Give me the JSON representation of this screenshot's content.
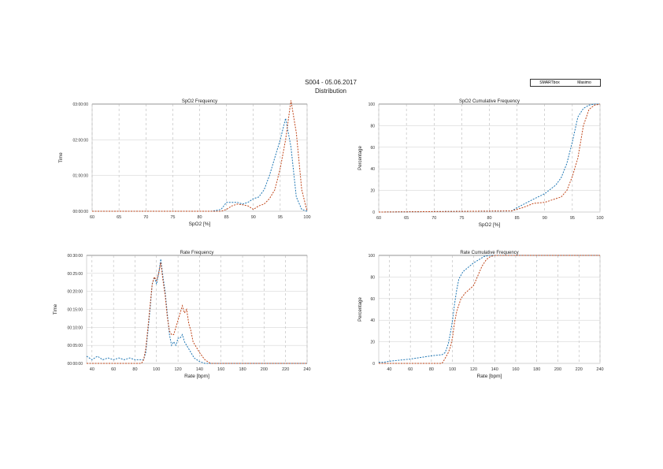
{
  "header": {
    "title": "S004 - 05.06.2017",
    "subtitle": "Distribution"
  },
  "legend": [
    "SMARTbox",
    "Masimo"
  ],
  "colors": {
    "SMARTbox": "#1f77b4",
    "Masimo": "#c0461a"
  },
  "chart_data": [
    {
      "type": "line",
      "title": "SpO2 Frequency",
      "xlabel": "SpO2 [%]",
      "ylabel": "Time",
      "xlim": [
        60,
        100
      ],
      "ylim": [
        0,
        3
      ],
      "xticks": [
        60,
        65,
        70,
        75,
        80,
        85,
        90,
        95,
        100
      ],
      "yticks": [
        0,
        1,
        2,
        3
      ],
      "yticklabels": [
        "00:00:00",
        "01:00:00",
        "02:00:00",
        "03:00:00"
      ],
      "series": [
        {
          "name": "SMARTbox",
          "x": [
            60,
            82,
            83,
            84,
            85,
            86,
            87,
            88,
            89,
            90,
            91,
            92,
            93,
            94,
            95,
            96,
            97,
            98,
            99,
            100
          ],
          "values": [
            0,
            0,
            0.02,
            0.05,
            0.25,
            0.25,
            0.25,
            0.2,
            0.25,
            0.35,
            0.4,
            0.6,
            1.0,
            1.5,
            2.0,
            2.6,
            1.8,
            0.4,
            0.05,
            0
          ]
        },
        {
          "name": "Masimo",
          "x": [
            60,
            84,
            85,
            86,
            87,
            88,
            89,
            90,
            91,
            92,
            93,
            94,
            95,
            96,
            97,
            98,
            99,
            100
          ],
          "values": [
            0,
            0,
            0.05,
            0.15,
            0.2,
            0.18,
            0.15,
            0.05,
            0.15,
            0.2,
            0.35,
            0.6,
            1.2,
            2.0,
            3.1,
            2.2,
            0.6,
            0
          ]
        }
      ]
    },
    {
      "type": "line",
      "title": "SpO2 Cumulative Frequency",
      "xlabel": "SpO2 [%]",
      "ylabel": "Percentage",
      "xlim": [
        60,
        100
      ],
      "ylim": [
        0,
        100
      ],
      "xticks": [
        60,
        65,
        70,
        75,
        80,
        85,
        90,
        95,
        100
      ],
      "yticks": [
        0,
        20,
        40,
        60,
        80,
        100
      ],
      "yticklabels": [
        "0",
        "20",
        "40",
        "60",
        "80",
        "100"
      ],
      "series": [
        {
          "name": "SMARTbox",
          "x": [
            60,
            84,
            85,
            88,
            90,
            92,
            93,
            94,
            95,
            96,
            97,
            98,
            99,
            100
          ],
          "values": [
            0,
            1,
            4,
            12,
            17,
            25,
            32,
            45,
            65,
            88,
            96,
            99,
            100,
            100
          ]
        },
        {
          "name": "Masimo",
          "x": [
            60,
            84,
            86,
            88,
            90,
            93,
            94,
            95,
            96,
            97,
            98,
            99,
            100
          ],
          "values": [
            0,
            1,
            4,
            8,
            9,
            14,
            20,
            33,
            50,
            80,
            95,
            99,
            100
          ]
        }
      ]
    },
    {
      "type": "line",
      "title": "Rate Frequency",
      "xlabel": "Rate [bpm]",
      "ylabel": "Time",
      "xlim": [
        35,
        240
      ],
      "ylim": [
        0,
        30
      ],
      "xticks": [
        40,
        60,
        80,
        100,
        120,
        140,
        160,
        180,
        200,
        220,
        240
      ],
      "yticks": [
        0,
        5,
        10,
        15,
        20,
        25,
        30
      ],
      "yticklabels": [
        "00:00:00",
        "00:05:00",
        "00:10:00",
        "00:15:00",
        "00:20:00",
        "00:25:00",
        "00:30:00"
      ],
      "series": [
        {
          "name": "SMARTbox",
          "x": [
            35,
            40,
            45,
            50,
            55,
            60,
            65,
            70,
            75,
            80,
            85,
            88,
            90,
            92,
            94,
            96,
            98,
            100,
            102,
            104,
            106,
            108,
            110,
            112,
            114,
            116,
            118,
            120,
            122,
            124,
            126,
            128,
            130,
            132,
            135,
            140,
            145,
            150,
            240
          ],
          "values": [
            2,
            1,
            2,
            1,
            1.5,
            1,
            1.5,
            1,
            1.5,
            1,
            1,
            1,
            3,
            9,
            15,
            22,
            24,
            22,
            25,
            29,
            24,
            20,
            14,
            8,
            5,
            6,
            5,
            7,
            7,
            8,
            6,
            5,
            4,
            3,
            1.5,
            0.5,
            0,
            0,
            0
          ]
        },
        {
          "name": "Masimo",
          "x": [
            35,
            86,
            88,
            90,
            92,
            94,
            96,
            98,
            100,
            102,
            104,
            106,
            108,
            110,
            112,
            114,
            116,
            118,
            120,
            122,
            124,
            126,
            128,
            130,
            132,
            134,
            136,
            140,
            145,
            150,
            240
          ],
          "values": [
            0,
            0,
            1,
            4,
            10,
            16,
            22,
            24,
            23,
            25,
            28,
            23,
            19,
            13,
            9,
            8,
            8,
            10,
            12,
            14,
            16,
            14,
            15,
            11,
            9,
            6,
            5,
            3,
            1,
            0,
            0
          ]
        }
      ]
    },
    {
      "type": "line",
      "title": "Rate Cumulative Frequency",
      "xlabel": "Rate [bpm]",
      "ylabel": "Percentage",
      "xlim": [
        30,
        240
      ],
      "ylim": [
        0,
        100
      ],
      "xticks": [
        40,
        60,
        80,
        100,
        120,
        140,
        160,
        180,
        200,
        220,
        240
      ],
      "yticks": [
        0,
        20,
        40,
        60,
        80,
        100
      ],
      "yticklabels": [
        "0",
        "20",
        "40",
        "60",
        "80",
        "100"
      ],
      "series": [
        {
          "name": "SMARTbox",
          "x": [
            30,
            35,
            40,
            60,
            80,
            90,
            93,
            96,
            98,
            100,
            102,
            104,
            106,
            110,
            120,
            130,
            135,
            140,
            240
          ],
          "values": [
            1,
            1,
            2,
            4,
            7,
            8,
            10,
            18,
            28,
            40,
            55,
            68,
            78,
            85,
            93,
            99,
            100,
            100,
            100
          ]
        },
        {
          "name": "Masimo",
          "x": [
            30,
            90,
            92,
            96,
            98,
            100,
            102,
            104,
            108,
            112,
            120,
            128,
            132,
            136,
            140,
            145,
            240
          ],
          "values": [
            0,
            0,
            3,
            10,
            15,
            24,
            38,
            48,
            60,
            65,
            72,
            90,
            96,
            99,
            100,
            100,
            100
          ]
        }
      ]
    }
  ]
}
